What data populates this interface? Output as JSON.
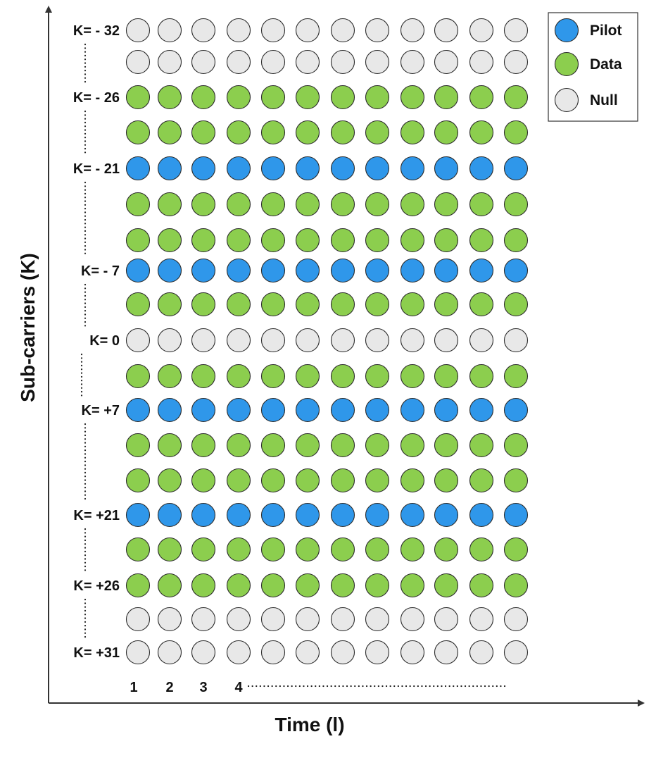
{
  "axes": {
    "y_label": "Sub-carriers (K)",
    "x_label": "Time (l)",
    "x_tick_labels": [
      "1",
      "2",
      "3",
      "4"
    ]
  },
  "legend": {
    "items": [
      {
        "label": "Pilot",
        "type": "pilot"
      },
      {
        "label": "Data",
        "type": "data"
      },
      {
        "label": "Null",
        "type": "null"
      }
    ]
  },
  "colors": {
    "pilot": "#2f97ea",
    "data": "#8cce4e",
    "null": "#e8e8e8",
    "stroke": "#2b2b2b",
    "axis": "#333333"
  },
  "grid": {
    "columns": 12,
    "rows": [
      {
        "label": "K= - 32",
        "type": "null"
      },
      {
        "label": "",
        "type": "null"
      },
      {
        "label": "K= - 26",
        "type": "data"
      },
      {
        "label": "",
        "type": "data"
      },
      {
        "label": "K= - 21",
        "type": "pilot"
      },
      {
        "label": "",
        "type": "data"
      },
      {
        "label": "",
        "type": "data"
      },
      {
        "label": "K= - 7",
        "type": "pilot"
      },
      {
        "label": "",
        "type": "data"
      },
      {
        "label": "K= 0",
        "type": "null"
      },
      {
        "label": "",
        "type": "data"
      },
      {
        "label": "K= +7",
        "type": "pilot"
      },
      {
        "label": "",
        "type": "data"
      },
      {
        "label": "",
        "type": "data"
      },
      {
        "label": "K= +21",
        "type": "pilot"
      },
      {
        "label": "",
        "type": "data"
      },
      {
        "label": "K= +26",
        "type": "data"
      },
      {
        "label": "",
        "type": "null"
      },
      {
        "label": "K= +31",
        "type": "null"
      }
    ]
  }
}
